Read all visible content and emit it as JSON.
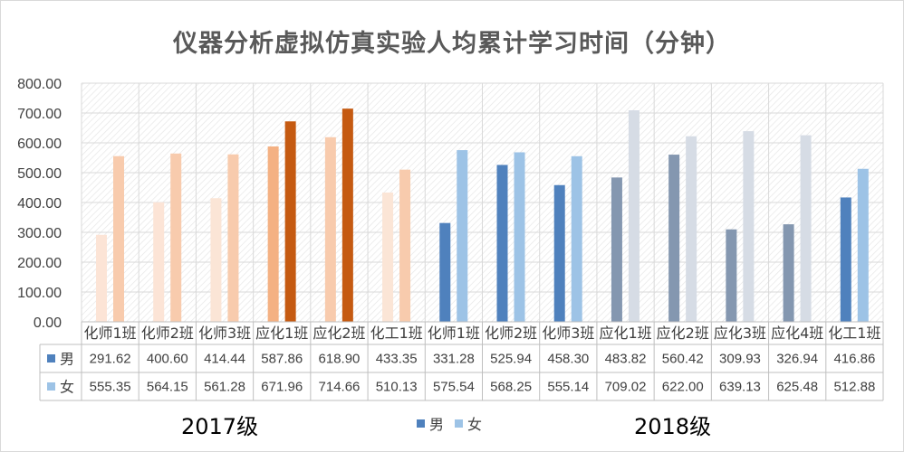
{
  "chart_data": {
    "type": "bar",
    "title": "仪器分析虚拟仿真实验人均累计学习时间（分钟）",
    "categories": [
      "化师1班",
      "化师2班",
      "化师3班",
      "应化1班",
      "应化2班",
      "化工1班",
      "化师1班",
      "化师2班",
      "化师3班",
      "应化1班",
      "应化2班",
      "应化3班",
      "应化4班",
      "化工1班"
    ],
    "series": [
      {
        "name": "男",
        "values": [
          291.62,
          400.6,
          414.44,
          587.86,
          618.9,
          433.35,
          331.28,
          525.94,
          458.3,
          483.82,
          560.42,
          309.93,
          326.94,
          416.86
        ]
      },
      {
        "name": "女",
        "values": [
          555.35,
          564.15,
          561.28,
          671.96,
          714.66,
          510.13,
          575.54,
          568.25,
          555.14,
          709.02,
          622.0,
          639.13,
          625.48,
          512.88
        ]
      }
    ],
    "series_display": [
      {
        "name": "男",
        "values": [
          "291.62",
          "400.60",
          "414.44",
          "587.86",
          "618.90",
          "433.35",
          "331.28",
          "525.94",
          "458.30",
          "483.82",
          "560.42",
          "309.93",
          "326.94",
          "416.86"
        ]
      },
      {
        "name": "女",
        "values": [
          "555.35",
          "564.15",
          "561.28",
          "671.96",
          "714.66",
          "510.13",
          "575.54",
          "568.25",
          "555.14",
          "709.02",
          "622.00",
          "639.13",
          "625.48",
          "512.88"
        ]
      }
    ],
    "point_colors": {
      "男": [
        "#fce4d6",
        "#fce4d6",
        "#fbe5d6",
        "#f4b183",
        "#f8cbad",
        "#fbe5d6",
        "#4f81bd",
        "#4f81bd",
        "#4f81bd",
        "#8497b0",
        "#8497b0",
        "#8497b0",
        "#8497b0",
        "#4f81bd"
      ],
      "女": [
        "#f8cbad",
        "#f8cbad",
        "#f8cbad",
        "#c55a11",
        "#c55a11",
        "#f8cbad",
        "#9dc3e6",
        "#9dc3e6",
        "#9dc3e6",
        "#d6dce5",
        "#d6dce5",
        "#d6dce5",
        "#d6dce5",
        "#9dc3e6"
      ]
    },
    "legend_colors": {
      "男": "#4f81bd",
      "女": "#9dc3e6"
    },
    "y_ticks": [
      "0.00",
      "100.00",
      "200.00",
      "300.00",
      "400.00",
      "500.00",
      "600.00",
      "700.00",
      "800.00"
    ],
    "ylim": [
      0,
      800
    ],
    "grid": true,
    "plot_background": "hatched",
    "year_groups": [
      {
        "label": "2017级",
        "count": 6
      },
      {
        "label": "2018级",
        "count": 8
      }
    ],
    "legend_position": "bottom-center"
  }
}
